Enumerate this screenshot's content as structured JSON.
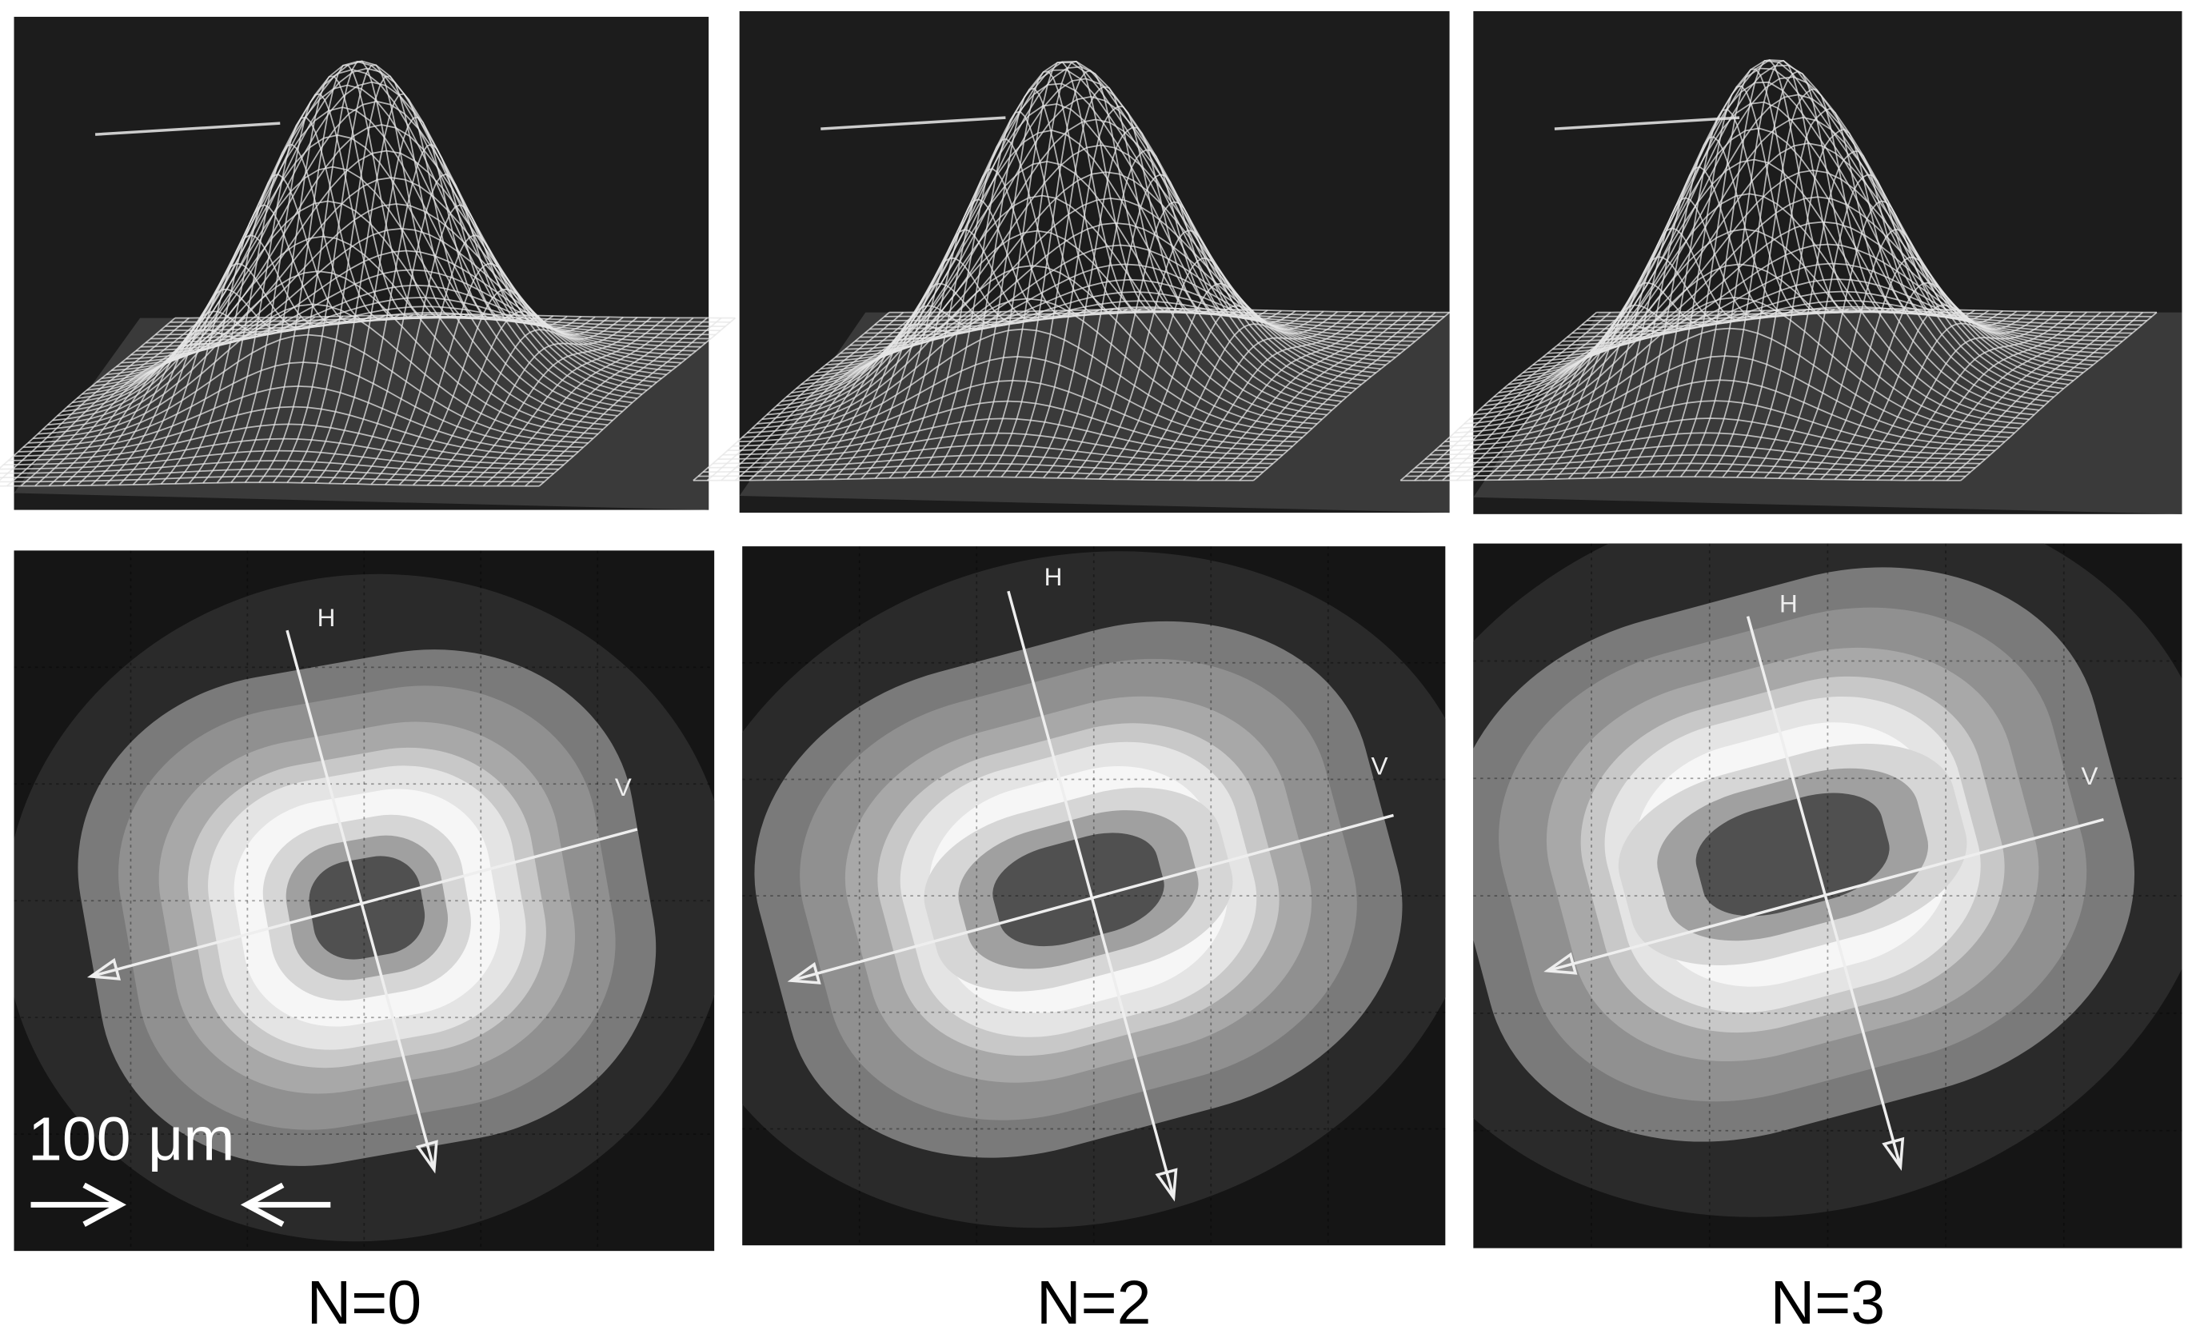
{
  "panels": [
    {
      "label": "N=0"
    },
    {
      "label": "N=2"
    },
    {
      "label": "N=3"
    }
  ],
  "scale_bar": "100 μm",
  "axis_labels": {
    "h": "H",
    "v": "V"
  }
}
